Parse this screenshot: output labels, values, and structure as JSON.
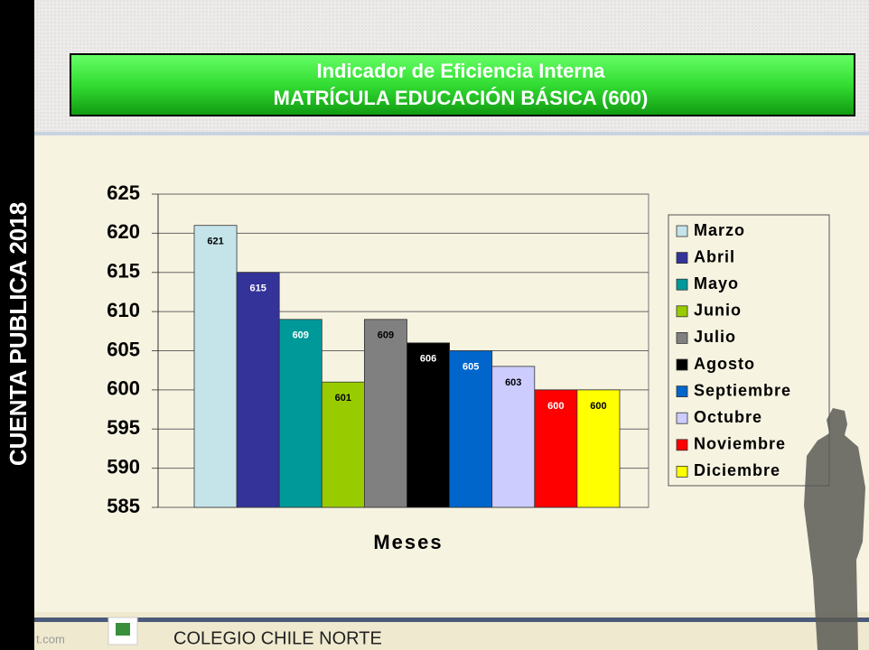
{
  "slide": {
    "side_text": "CUENTA PUBLICA 2018",
    "footer": "COLEGIO CHILE NORTE",
    "footer_left": "t.com"
  },
  "chart_data": {
    "type": "bar",
    "title": "Indicador de Eficiencia Interna",
    "subtitle": "MATRÍCULA EDUCACIÓN BÁSICA (600)",
    "x_label": "Meses",
    "categories": [
      null
    ],
    "series": [
      {
        "name": "Marzo",
        "color": "#c4e4ea",
        "values": [
          621
        ]
      },
      {
        "name": "Abril",
        "color": "#333399",
        "values": [
          615
        ]
      },
      {
        "name": "Mayo",
        "color": "#009999",
        "values": [
          609
        ]
      },
      {
        "name": "Junio",
        "color": "#99cc00",
        "values": [
          601
        ]
      },
      {
        "name": "Julio",
        "color": "#808080",
        "values": [
          609
        ]
      },
      {
        "name": "Agosto",
        "color": "#000000",
        "values": [
          606
        ]
      },
      {
        "name": "Septiembre",
        "color": "#0066cc",
        "values": [
          605
        ]
      },
      {
        "name": "Octubre",
        "color": "#ccccff",
        "values": [
          603
        ]
      },
      {
        "name": "Noviembre",
        "color": "#ff0000",
        "values": [
          600
        ]
      },
      {
        "name": "Diciembre",
        "color": "#ffff00",
        "values": [
          600
        ]
      }
    ],
    "ylim": [
      585,
      625
    ],
    "yticks": [
      585,
      590,
      595,
      600,
      605,
      610,
      615,
      620,
      625
    ],
    "grid": true,
    "legend": "right"
  }
}
